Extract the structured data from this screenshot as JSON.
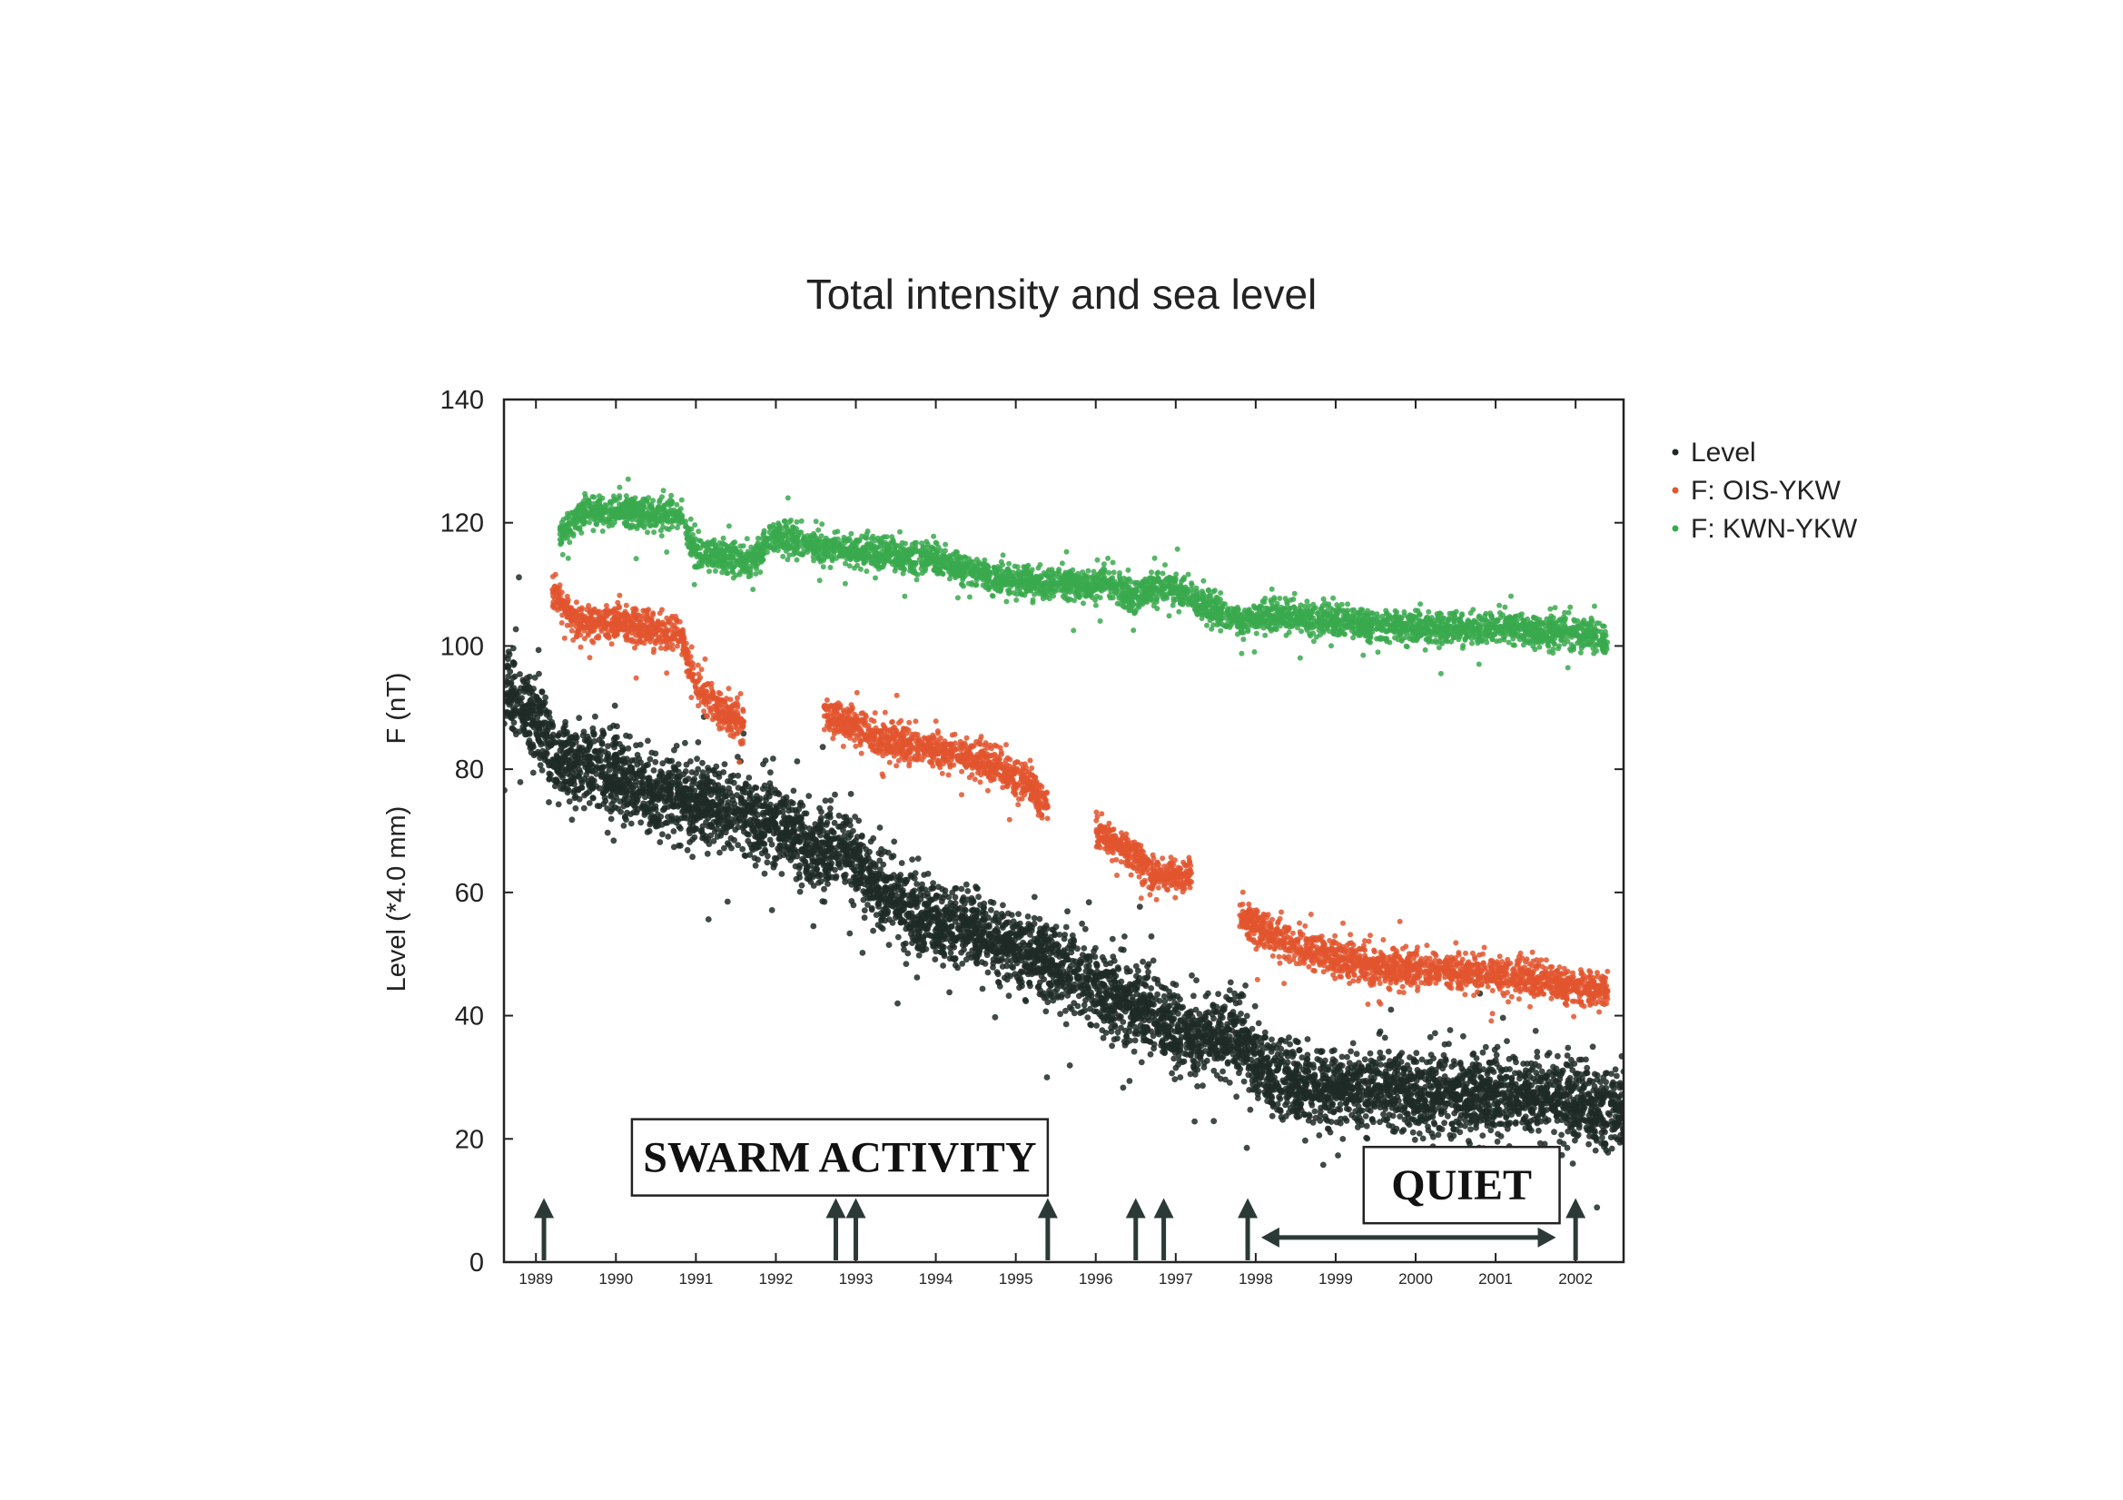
{
  "chart_data": {
    "type": "scatter",
    "title": "Total intensity and sea level",
    "ylabel_left": "Level (*4.0 mm)",
    "ylabel_right": "F (nT)",
    "xlabel": "",
    "xlim": [
      1988.6,
      2002.6
    ],
    "ylim": [
      0,
      140
    ],
    "yticks": [
      0,
      20,
      40,
      60,
      80,
      100,
      120,
      140
    ],
    "xticks": [
      1989,
      1990,
      1991,
      1992,
      1993,
      1994,
      1995,
      1996,
      1997,
      1998,
      1999,
      2000,
      2001,
      2002
    ],
    "xtick_labels": [
      "1989",
      "1990",
      "1991",
      "1992",
      "1993",
      "1994",
      "1995",
      "1996",
      "1997",
      "1998",
      "1999",
      "2000",
      "2001",
      "2002"
    ],
    "legend_position": "right",
    "series": [
      {
        "name": "Level",
        "color": "#1f2a26",
        "trend": [
          [
            1988.6,
            93
          ],
          [
            1989.0,
            88
          ],
          [
            1989.3,
            81
          ],
          [
            1990.0,
            79
          ],
          [
            1990.5,
            76
          ],
          [
            1991.0,
            75
          ],
          [
            1991.5,
            73
          ],
          [
            1992.0,
            71
          ],
          [
            1992.45,
            67
          ],
          [
            1992.9,
            67
          ],
          [
            1993.3,
            60
          ],
          [
            1993.8,
            56
          ],
          [
            1994.5,
            54
          ],
          [
            1995.2,
            50
          ],
          [
            1995.8,
            46
          ],
          [
            1996.4,
            42
          ],
          [
            1996.9,
            39
          ],
          [
            1997.2,
            36
          ],
          [
            1997.8,
            37
          ],
          [
            1998.0,
            32
          ],
          [
            1998.5,
            29
          ],
          [
            1999.5,
            28
          ],
          [
            2000.5,
            27
          ],
          [
            2001.5,
            27
          ],
          [
            2002.0,
            26
          ],
          [
            2002.6,
            24
          ]
        ],
        "spread": 3.5
      },
      {
        "name": "F: OIS-YKW",
        "color": "#e2552e",
        "trend": [
          [
            1989.2,
            109
          ],
          [
            1989.5,
            104
          ],
          [
            1990.0,
            104
          ],
          [
            1990.8,
            102
          ],
          [
            1991.0,
            93
          ],
          [
            1991.6,
            87
          ],
          [
            1992.5,
            null
          ],
          [
            1992.6,
            89
          ],
          [
            1993.3,
            85
          ],
          [
            1994.0,
            83
          ],
          [
            1994.7,
            81
          ],
          [
            1995.2,
            77
          ],
          [
            1995.4,
            74
          ],
          [
            1995.6,
            null
          ],
          [
            1996.0,
            70
          ],
          [
            1996.5,
            66
          ],
          [
            1996.7,
            63
          ],
          [
            1997.2,
            63
          ],
          [
            1997.5,
            null
          ],
          [
            1997.8,
            56
          ],
          [
            1998.5,
            51
          ],
          [
            1999.5,
            48
          ],
          [
            2000.5,
            47
          ],
          [
            2001.5,
            46
          ],
          [
            2002.4,
            44
          ]
        ],
        "spread": 1.6
      },
      {
        "name": "F: KWN-YKW",
        "color": "#3aa94e",
        "trend": [
          [
            1989.3,
            118
          ],
          [
            1989.6,
            122
          ],
          [
            1990.0,
            122
          ],
          [
            1990.8,
            121
          ],
          [
            1991.0,
            115
          ],
          [
            1991.7,
            114
          ],
          [
            1992.0,
            118
          ],
          [
            1992.5,
            116
          ],
          [
            1993.3,
            115
          ],
          [
            1994.0,
            114
          ],
          [
            1994.8,
            111
          ],
          [
            1995.5,
            110
          ],
          [
            1996.2,
            110
          ],
          [
            1996.5,
            108
          ],
          [
            1996.9,
            110
          ],
          [
            1997.3,
            107
          ],
          [
            1997.8,
            104
          ],
          [
            1998.2,
            105
          ],
          [
            1999.0,
            104
          ],
          [
            2000.0,
            103
          ],
          [
            2001.0,
            103
          ],
          [
            2002.0,
            102
          ],
          [
            2002.4,
            101
          ]
        ],
        "spread": 1.4
      }
    ],
    "annotations": [
      {
        "text": "SWARM  ACTIVITY",
        "x_range": [
          1990.2,
          1995.4
        ],
        "y": 17
      },
      {
        "text": "QUIET",
        "x_range": [
          1999.35,
          2001.8
        ],
        "y": 12.5
      }
    ],
    "event_arrows": [
      1989.1,
      1992.75,
      1993.0,
      1995.4,
      1996.5,
      1996.85,
      1997.9,
      2002.0
    ],
    "quiet_span": [
      1998.0,
      2001.8
    ]
  }
}
